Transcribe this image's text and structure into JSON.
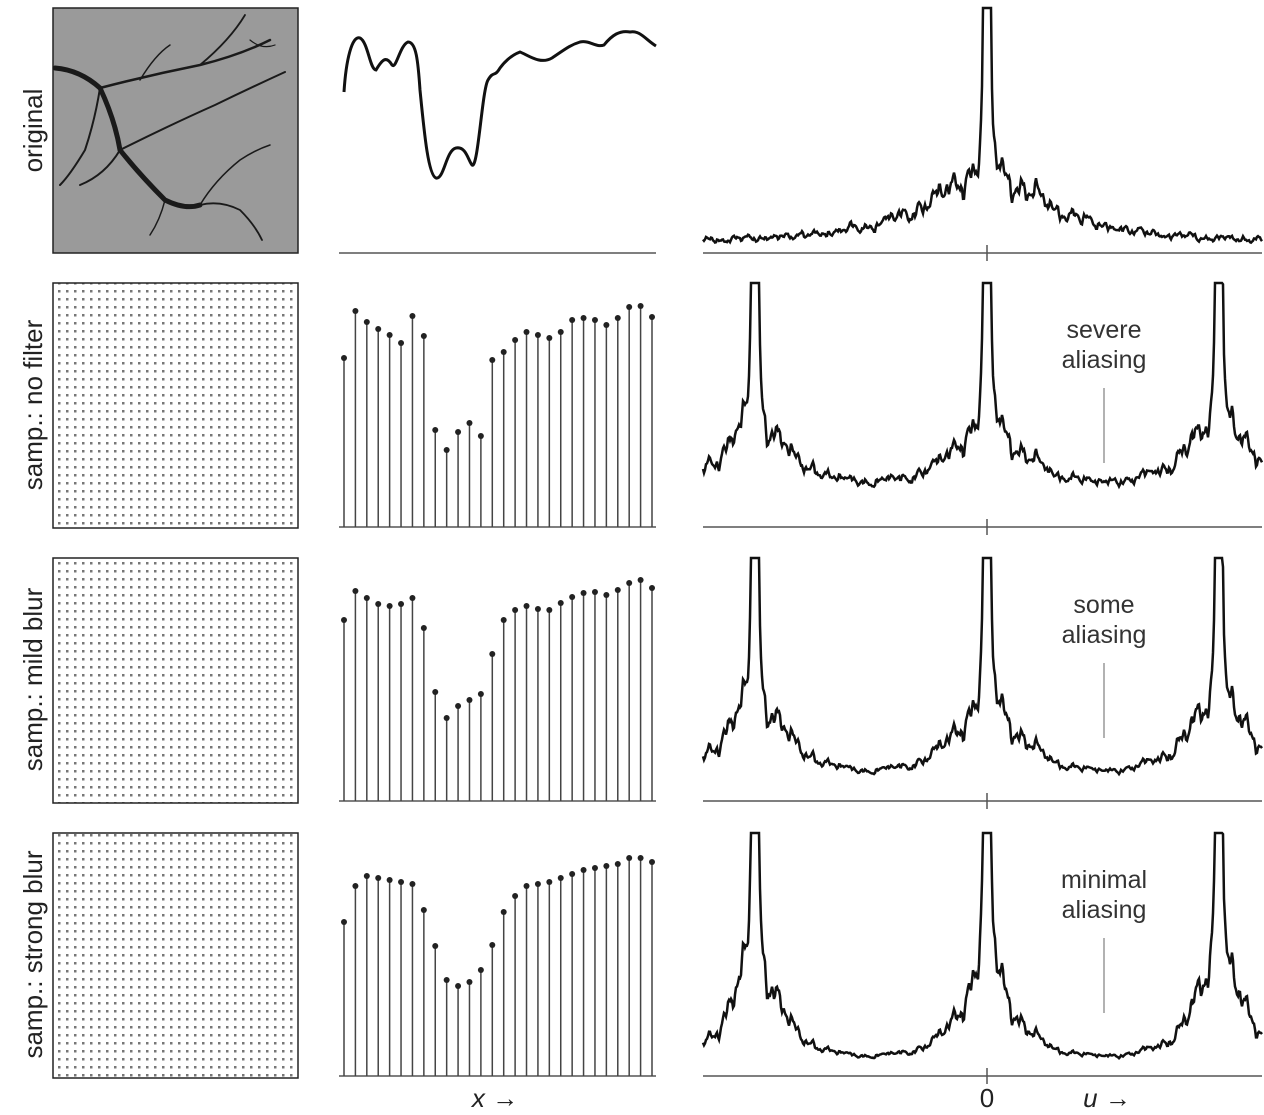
{
  "rows": [
    {
      "label": "original"
    },
    {
      "label": "samp.: no filter",
      "samples": [
        169,
        216,
        205,
        198,
        192,
        184,
        211,
        191,
        97,
        77,
        95,
        104,
        91,
        167,
        175,
        187,
        195,
        192,
        189,
        195,
        207,
        209,
        207,
        202,
        209,
        220,
        221,
        210
      ],
      "annotation": [
        "severe",
        "aliasing"
      ]
    },
    {
      "label": "samp.: mild blur",
      "samples": [
        181,
        210,
        203,
        197,
        195,
        197,
        203,
        173,
        109,
        83,
        95,
        101,
        107,
        147,
        181,
        191,
        195,
        192,
        191,
        198,
        204,
        208,
        209,
        206,
        211,
        218,
        221,
        213
      ],
      "annotation": [
        "some",
        "aliasing"
      ]
    },
    {
      "label": "samp.: strong blur",
      "samples": [
        154,
        190,
        200,
        198,
        196,
        194,
        192,
        166,
        130,
        96,
        90,
        94,
        106,
        131,
        164,
        180,
        190,
        192,
        194,
        198,
        202,
        206,
        208,
        210,
        212,
        218,
        218,
        214
      ],
      "annotation": [
        "minimal",
        "aliasing"
      ]
    }
  ],
  "axes": {
    "x_label": "x →",
    "u_zero": "0",
    "u_label": "u →"
  }
}
